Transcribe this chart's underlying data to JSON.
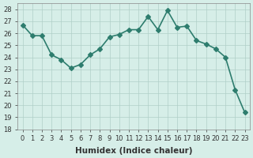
{
  "x": [
    0,
    1,
    2,
    3,
    4,
    5,
    6,
    7,
    8,
    9,
    10,
    11,
    12,
    13,
    14,
    15,
    16,
    17,
    18,
    19,
    20,
    21,
    22,
    23
  ],
  "y": [
    26.7,
    25.8,
    25.8,
    24.2,
    23.8,
    23.1,
    23.4,
    24.2,
    24.7,
    25.7,
    25.9,
    26.3,
    26.3,
    27.4,
    26.3,
    27.9,
    26.5,
    26.6,
    25.4,
    25.1,
    24.7,
    24.0,
    21.3,
    19.4
  ],
  "line_color": "#2e7d6e",
  "marker": "D",
  "markersize": 3,
  "bg_color": "#d6eee8",
  "grid_color": "#b0cfc8",
  "xlabel": "Humidex (Indice chaleur)",
  "ylim": [
    18,
    28.5
  ],
  "xlim": [
    -0.5,
    23.5
  ],
  "yticks": [
    18,
    19,
    20,
    21,
    22,
    23,
    24,
    25,
    26,
    27,
    28
  ],
  "xticks": [
    0,
    1,
    2,
    3,
    4,
    5,
    6,
    7,
    8,
    9,
    10,
    11,
    12,
    13,
    14,
    15,
    16,
    17,
    18,
    19,
    20,
    21,
    22,
    23
  ],
  "tick_labelsize": 6,
  "xlabel_fontsize": 7.5,
  "linewidth": 1.2
}
